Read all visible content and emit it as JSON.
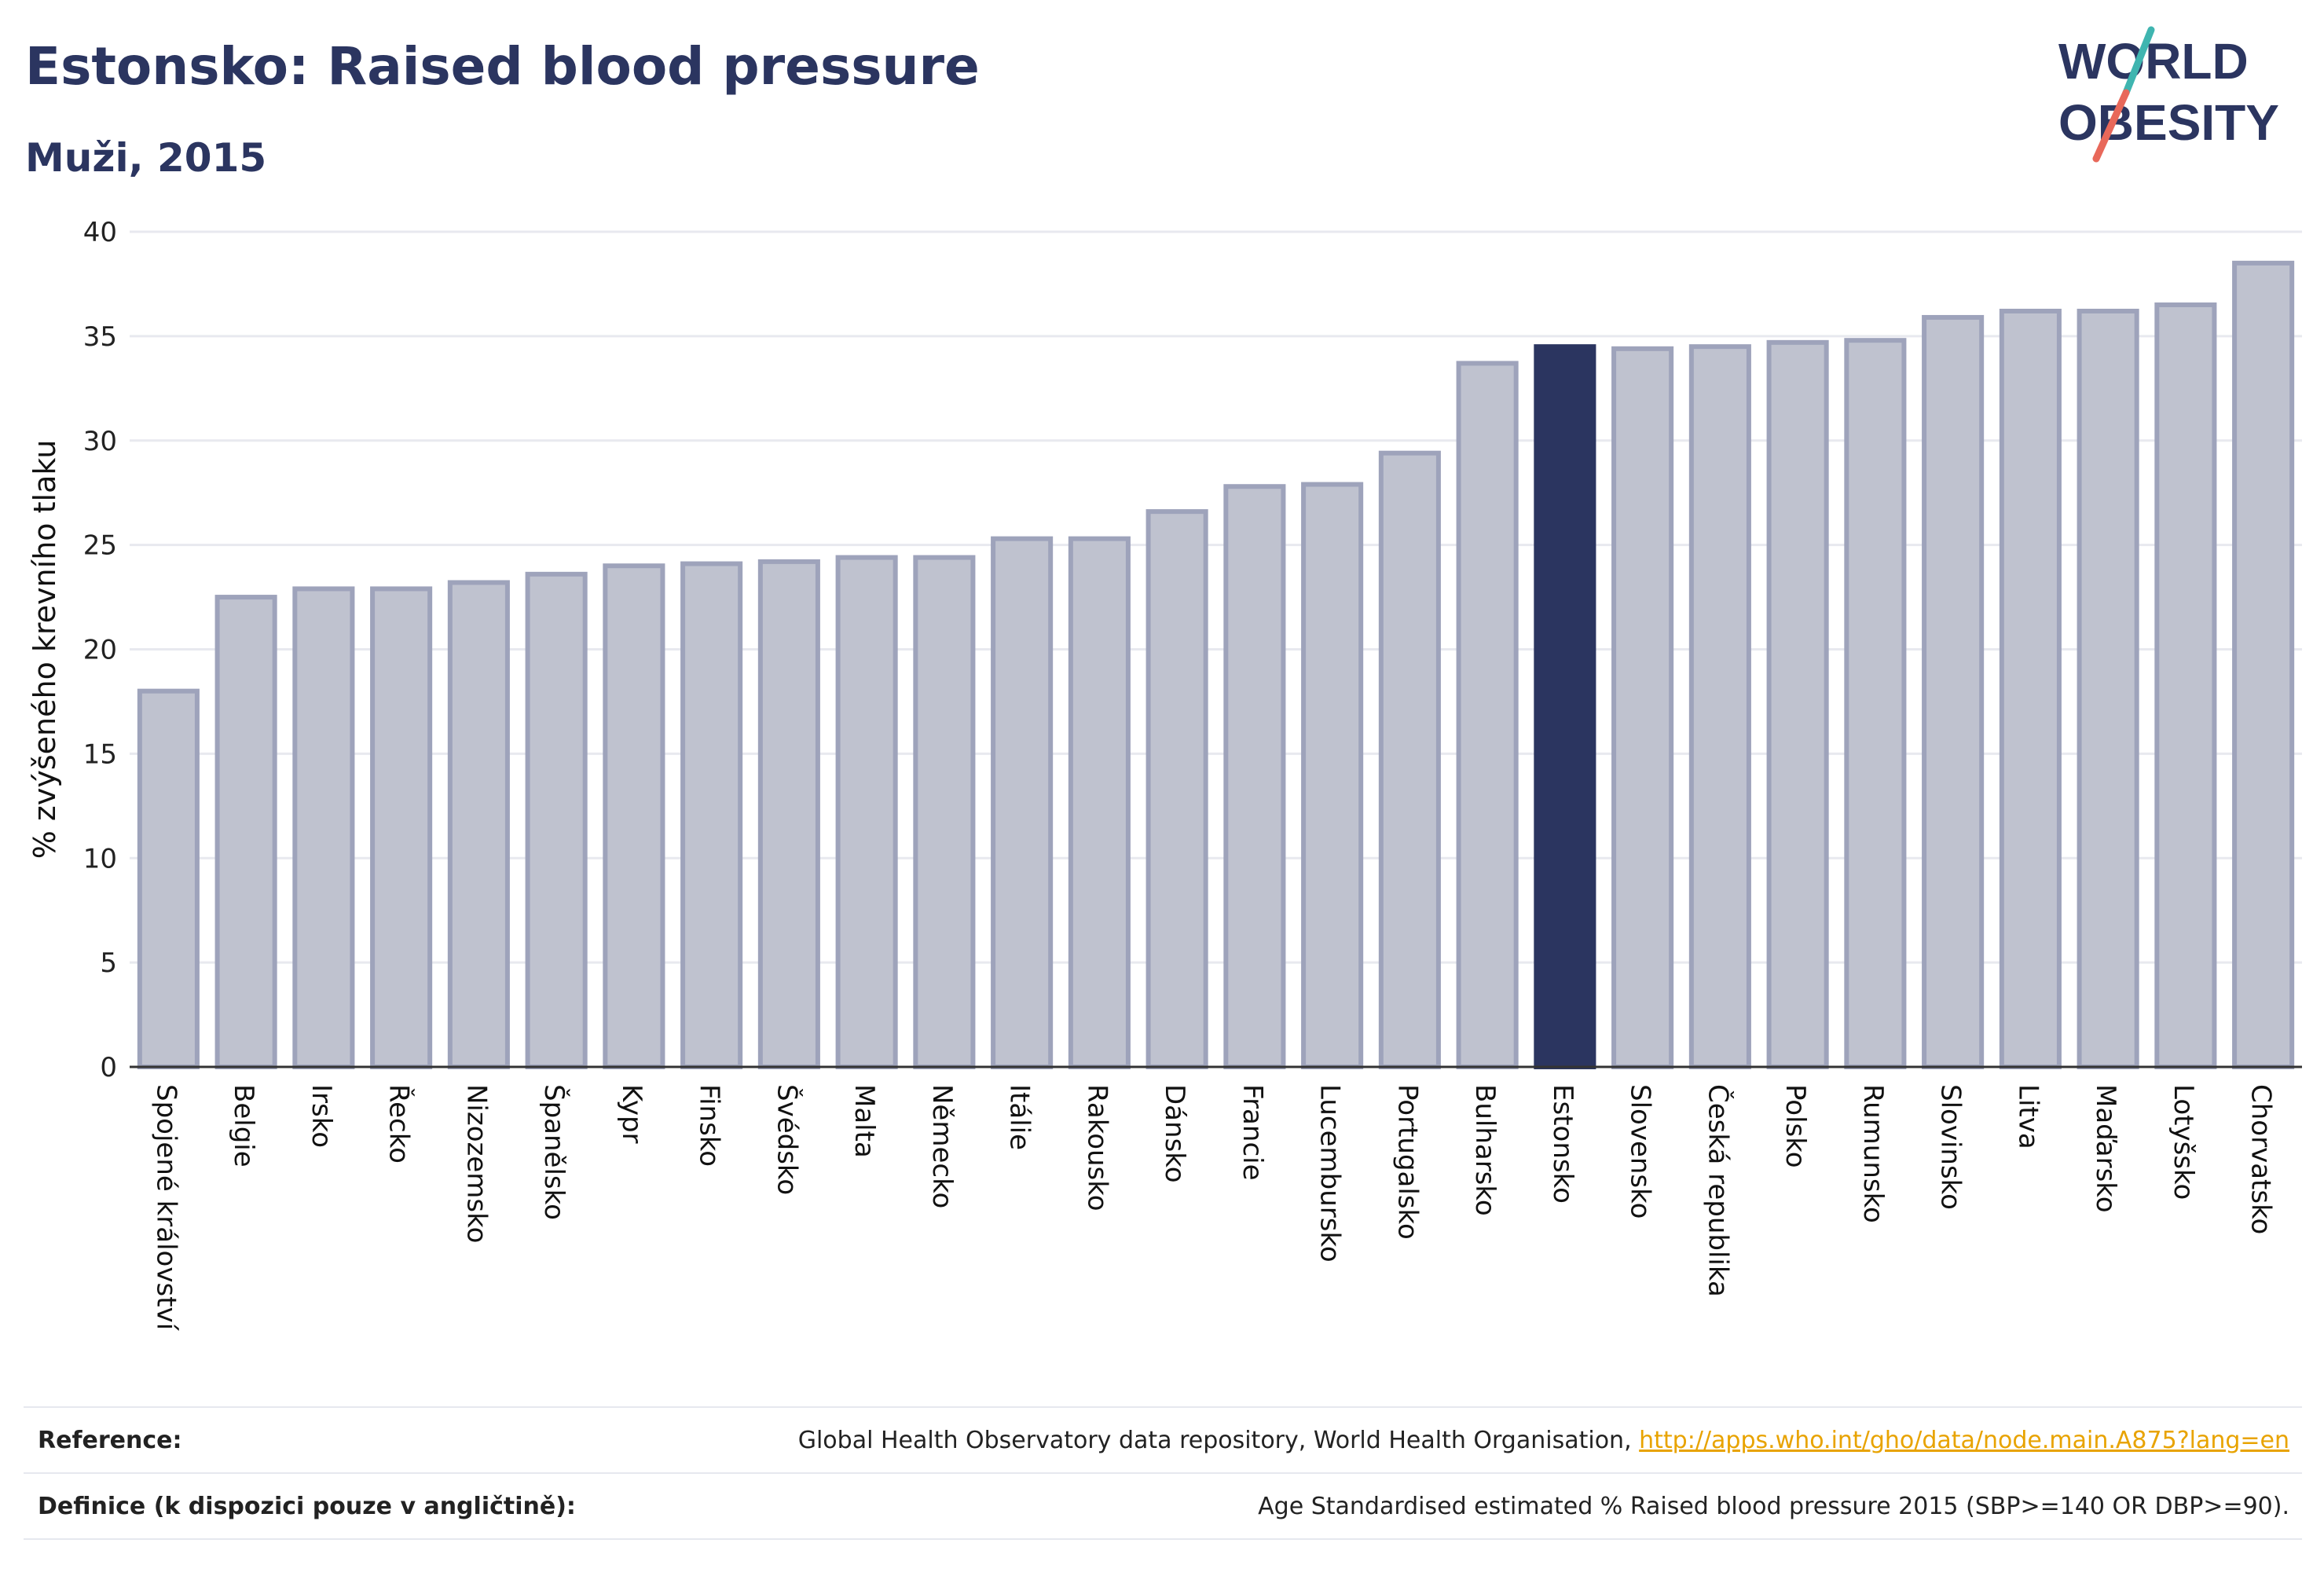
{
  "header": {
    "title": "Estonsko: Raised blood pressure",
    "subtitle": "Muži, 2015"
  },
  "logo": {
    "line1": "WORLD",
    "line2": "OBESITY",
    "colors": {
      "text": "#2b3560",
      "slash_top": "#3fb5b0",
      "slash_bottom": "#e8685a"
    }
  },
  "chart_data": {
    "type": "bar",
    "ylabel": "% zvýšeného krevního tlaku",
    "xlabel": "",
    "ylim": [
      0,
      40
    ],
    "yticks": [
      0,
      5,
      10,
      15,
      20,
      25,
      30,
      35,
      40
    ],
    "grid": true,
    "highlight": "Estonsko",
    "colors": {
      "bar": "#bfc2cf",
      "bar_border": "#9ea3bb",
      "highlight": "#2b3560",
      "grid": "#e8e9ef",
      "axis": "#333333"
    },
    "categories": [
      "Spojené království",
      "Belgie",
      "Irsko",
      "Řecko",
      "Nizozemsko",
      "Španělsko",
      "Kypr",
      "Finsko",
      "Švédsko",
      "Malta",
      "Německo",
      "Itálie",
      "Rakousko",
      "Dánsko",
      "Francie",
      "Lucembursko",
      "Portugalsko",
      "Bulharsko",
      "Estonsko",
      "Slovensko",
      "Česká republika",
      "Polsko",
      "Rumunsko",
      "Slovinsko",
      "Litva",
      "Maďarsko",
      "Lotyšsko",
      "Chorvatsko"
    ],
    "values": [
      18.0,
      22.5,
      22.9,
      22.9,
      23.2,
      23.6,
      24.0,
      24.1,
      24.2,
      24.4,
      24.4,
      25.3,
      25.3,
      26.6,
      27.8,
      27.9,
      29.4,
      33.7,
      34.5,
      34.4,
      34.5,
      34.7,
      34.8,
      35.9,
      36.2,
      36.2,
      36.5,
      38.5
    ]
  },
  "reference": {
    "label": "Reference:",
    "text": "Global Health Observatory data repository, World Health Organisation, ",
    "link": "http://apps.who.int/gho/data/node.main.A875?lang=en"
  },
  "definition": {
    "label": "Definice (k dispozici pouze v angličtině):",
    "text": "Age Standardised estimated % Raised blood pressure 2015 (SBP>=140 OR DBP>=90)."
  }
}
